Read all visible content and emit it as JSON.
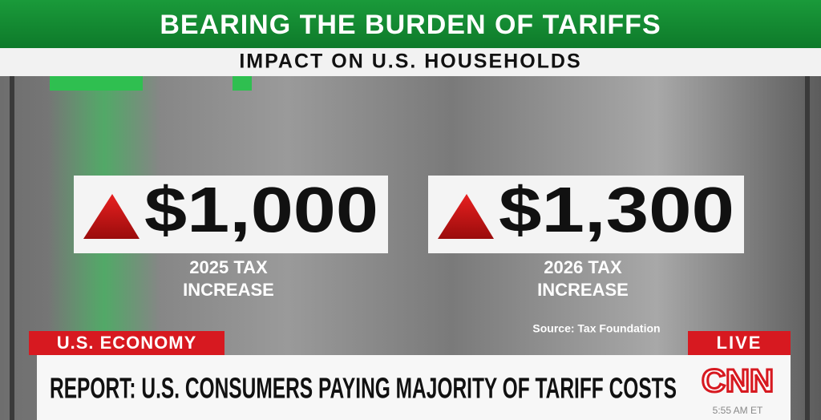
{
  "header": {
    "title": "BEARING THE BURDEN OF TARIFFS",
    "subtitle": "IMPACT ON U.S. HOUSEHOLDS"
  },
  "cards": [
    {
      "amount": "$1,000",
      "label": [
        "2025 TAX",
        "INCREASE"
      ]
    },
    {
      "amount": "$1,300",
      "label": [
        "2026 TAX",
        "INCREASE"
      ]
    }
  ],
  "source": "Source: Tax Foundation",
  "lower_third": {
    "topic": "U.S. ECONOMY",
    "live": "LIVE",
    "headline": "REPORT: U.S. CONSUMERS PAYING MAJORITY OF TARIFF COSTS",
    "logo": "CNN",
    "time": "5:55 AM ET"
  }
}
